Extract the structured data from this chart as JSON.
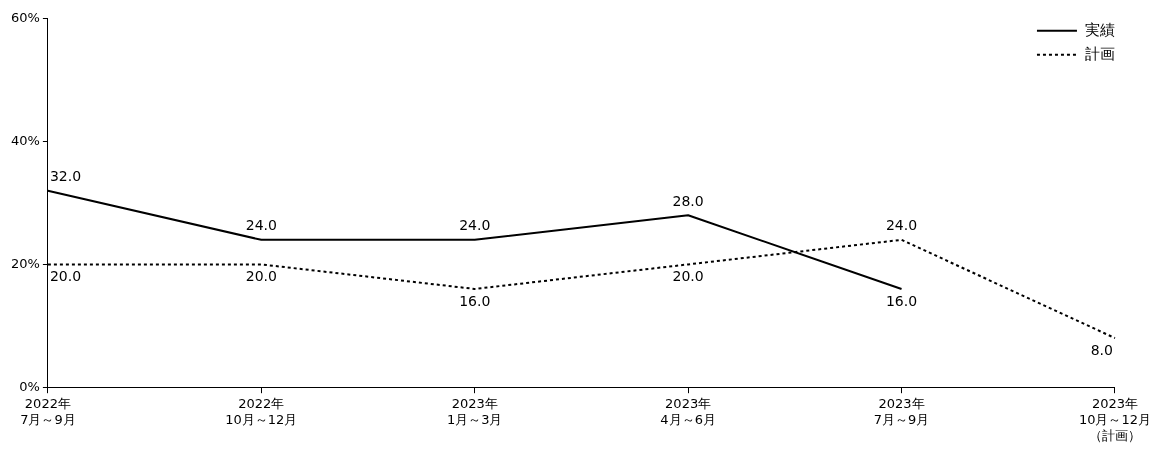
{
  "chart_data": {
    "type": "line",
    "categories": [
      "2022年7月～9月",
      "2022年10月～12月",
      "2023年1月～3月",
      "2023年4月～6月",
      "2023年7月～9月",
      "2023年10月～12月（計画）"
    ],
    "series": [
      {
        "name": "実績",
        "color": "#000000",
        "line_style": "solid",
        "values": [
          32,
          24,
          24,
          28,
          16,
          null
        ],
        "value_labels": [
          "32.0",
          "24.0",
          "24.0",
          "28.0",
          "16.0",
          null
        ]
      },
      {
        "name": "計画",
        "color": "#000000",
        "line_style": "dotted",
        "values": [
          20,
          20,
          16,
          20,
          24,
          8
        ],
        "value_labels": [
          "20.0",
          "20.0",
          "16.0",
          "20.0",
          "24.0",
          "8.0"
        ]
      }
    ],
    "ylim": [
      0,
      60
    ],
    "yticks": [
      {
        "value": 0,
        "label": "0%"
      },
      {
        "value": 20,
        "label": "20%"
      },
      {
        "value": 40,
        "label": "40%"
      },
      {
        "value": 60,
        "label": "60%"
      }
    ],
    "grid": false,
    "legend": "top right",
    "marker": "none"
  }
}
